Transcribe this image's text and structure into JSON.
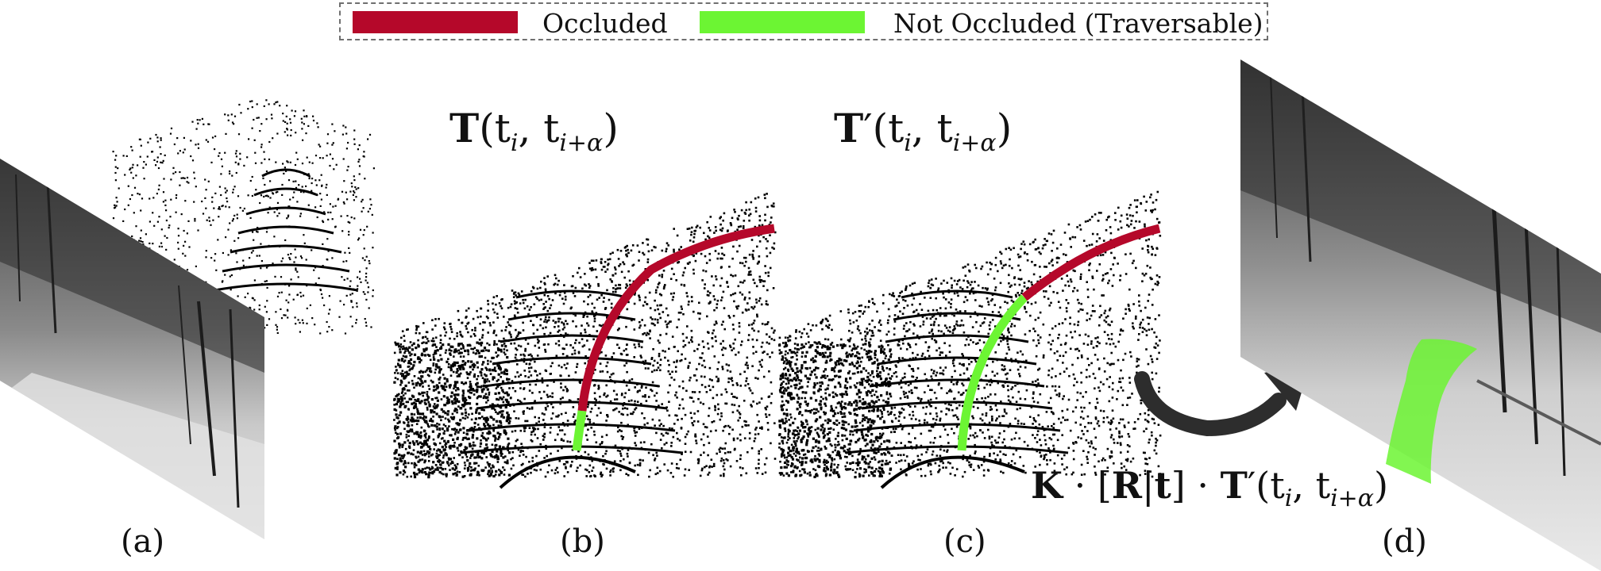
{
  "legend": {
    "items": [
      {
        "label": "Occluded",
        "color": "#b5082a"
      },
      {
        "label": "Not Occluded (Traversable)",
        "color": "#6cf533"
      }
    ]
  },
  "panels": {
    "a": {
      "label": "(a)"
    },
    "b": {
      "label": "(b)",
      "equation": {
        "symbol": "T",
        "prime": "",
        "args": "(t",
        "sub1": "i",
        "mid": ", t",
        "sub2": "i+α",
        "close": ")"
      }
    },
    "c": {
      "label": "(c)",
      "equation": {
        "symbol": "T",
        "prime": "′",
        "args": "(t",
        "sub1": "i",
        "mid": ", t",
        "sub2": "i+α",
        "close": ")"
      }
    },
    "d": {
      "label": "(d)"
    }
  },
  "projection_equation": {
    "K": "K",
    "dot1": " · [",
    "R": "R",
    "bar": "|",
    "t": "t",
    "dot2": "] · ",
    "T": "T",
    "rest": "′(t",
    "sub1": "i",
    "mid": ", t",
    "sub2": "i+α",
    "close": ")"
  },
  "colors": {
    "occluded": "#b5082a",
    "traversable": "#6cf533",
    "arrow": "#2d2d2d",
    "points": "#000000"
  }
}
